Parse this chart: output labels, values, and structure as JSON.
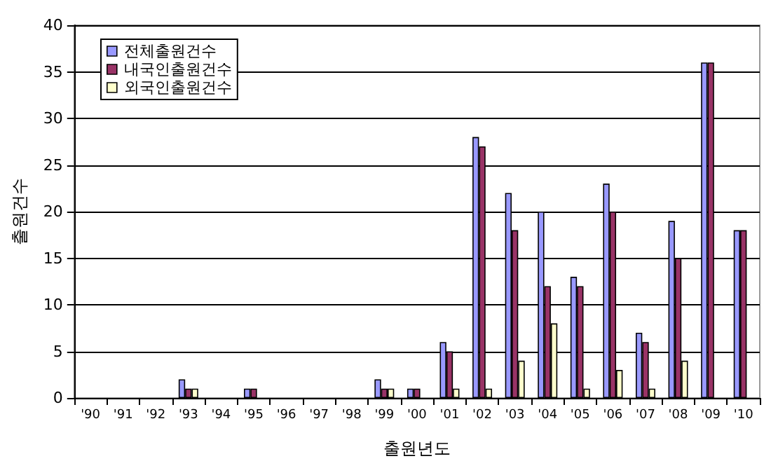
{
  "chart_data": {
    "type": "bar",
    "xlabel": "출원년도",
    "ylabel": "출원건수",
    "categories": [
      "'90",
      "'91",
      "'92",
      "'93",
      "'94",
      "'95",
      "'96",
      "'97",
      "'98",
      "'99",
      "'00",
      "'01",
      "'02",
      "'03",
      "'04",
      "'05",
      "'06",
      "'07",
      "'08",
      "'09",
      "'10"
    ],
    "series": [
      {
        "name": "전체출원건수",
        "color": "#9999ff",
        "values": [
          0,
          0,
          0,
          2,
          0,
          1,
          0,
          0,
          0,
          2,
          1,
          6,
          28,
          22,
          20,
          13,
          23,
          7,
          19,
          36,
          18
        ]
      },
      {
        "name": "내국인출원건수",
        "color": "#993366",
        "values": [
          0,
          0,
          0,
          1,
          0,
          1,
          0,
          0,
          0,
          1,
          1,
          5,
          27,
          18,
          12,
          12,
          20,
          6,
          15,
          36,
          18
        ]
      },
      {
        "name": "외국인출원건수",
        "color": "#ffffcc",
        "values": [
          0,
          0,
          0,
          1,
          0,
          0,
          0,
          0,
          0,
          1,
          0,
          1,
          1,
          4,
          8,
          1,
          3,
          1,
          4,
          0,
          0
        ]
      }
    ],
    "ylim": [
      0,
      40
    ],
    "yticks": [
      0,
      5,
      10,
      15,
      20,
      25,
      30,
      35,
      40
    ],
    "grid": "y",
    "legend": "top left"
  }
}
